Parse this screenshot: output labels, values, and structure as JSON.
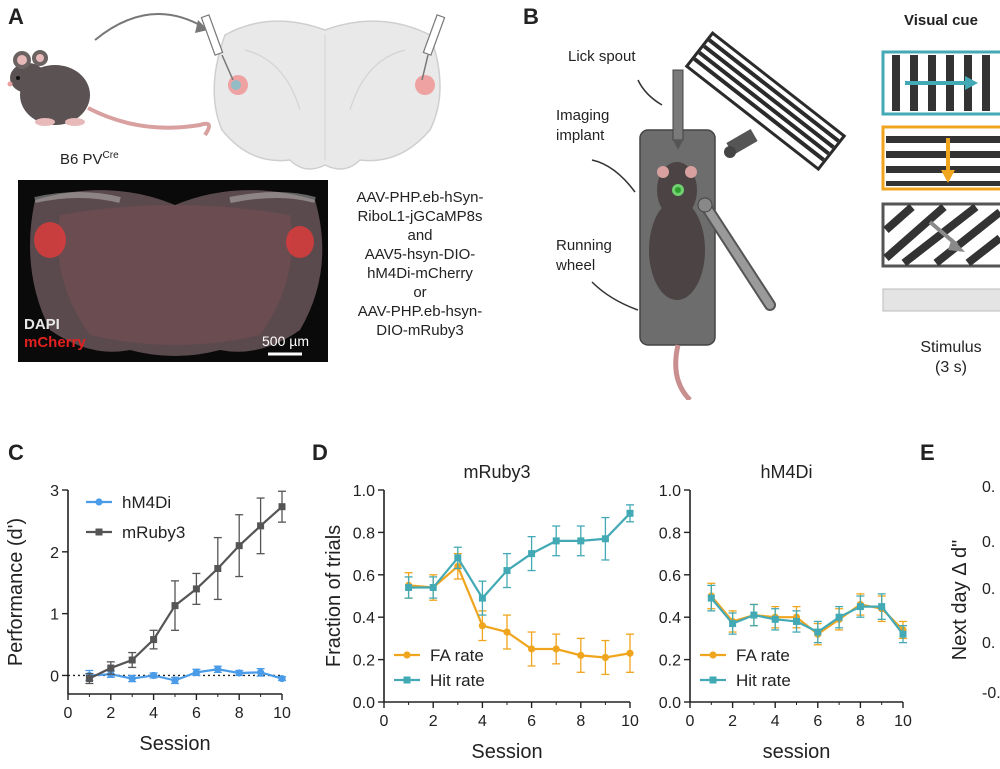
{
  "panels": {
    "A": "A",
    "B": "B",
    "C": "C",
    "D": "D",
    "E": "E"
  },
  "panelA": {
    "mouse_label": "B6 PV",
    "mouse_label_sup": "Cre",
    "histology": {
      "stain1": "DAPI",
      "stain2": "mCherry",
      "scale_bar": "500 µm"
    },
    "constructs": [
      "AAV-PHP.eb-hSyn-",
      "RiboL1-jGCaMP8s",
      "and",
      "AAV5-hsyn-DIO-",
      "hM4Di-mCherry",
      "or",
      "AAV-PHP.eb-hsyn-",
      "DIO-mRuby3"
    ]
  },
  "panelB": {
    "lick_spout": "Lick spout",
    "imaging_implant": [
      "Imaging",
      "implant"
    ],
    "running_wheel": [
      "Running",
      "wheel"
    ],
    "visual_cue_title": "Visual cue",
    "stimulus": [
      "Stimulus",
      "(3 s)"
    ],
    "colors": {
      "teal": "#43aab5",
      "orange": "#f0a51e",
      "gray": "#777777"
    }
  },
  "chart_data": [
    {
      "type": "line",
      "panel": "C",
      "xlabel": "Session",
      "ylabel": "Performance (d')",
      "xlim": [
        0,
        10
      ],
      "ylim": [
        -0.3,
        3
      ],
      "xticks": [
        "0",
        "2",
        "4",
        "6",
        "8",
        "10"
      ],
      "yticks": [
        "0",
        "1",
        "2",
        "3"
      ],
      "x": [
        1,
        2,
        3,
        4,
        5,
        6,
        7,
        8,
        9,
        10
      ],
      "reference_line": 0,
      "series": [
        {
          "name": "hM4Di",
          "color": "#4a9be8",
          "values": [
            0.0,
            0.02,
            -0.05,
            0.0,
            -0.08,
            0.05,
            0.1,
            0.04,
            0.05,
            -0.05
          ],
          "errors": [
            0.08,
            0.05,
            0.05,
            0.04,
            0.05,
            0.05,
            0.05,
            0.04,
            0.06,
            0.03
          ]
        },
        {
          "name": "mRuby3",
          "color": "#555555",
          "values": [
            -0.05,
            0.12,
            0.25,
            0.58,
            1.13,
            1.4,
            1.73,
            2.1,
            2.42,
            2.73
          ],
          "errors": [
            0.08,
            0.1,
            0.12,
            0.15,
            0.4,
            0.25,
            0.5,
            0.5,
            0.45,
            0.25
          ]
        }
      ]
    },
    {
      "type": "line",
      "panel": "D",
      "title": "mRuby3",
      "xlabel": "Session",
      "ylabel": "Fraction of trials",
      "xlim": [
        0,
        10
      ],
      "ylim": [
        0,
        1
      ],
      "xticks": [
        "0",
        "2",
        "4",
        "6",
        "8",
        "10"
      ],
      "yticks": [
        "0.0",
        "0.2",
        "0.4",
        "0.6",
        "0.8",
        "1.0"
      ],
      "x": [
        1,
        2,
        3,
        4,
        5,
        6,
        7,
        8,
        9,
        10
      ],
      "series": [
        {
          "name": "FA rate",
          "color": "#f0a51e",
          "values": [
            0.55,
            0.54,
            0.64,
            0.36,
            0.33,
            0.25,
            0.25,
            0.22,
            0.21,
            0.23
          ],
          "errors": [
            0.06,
            0.06,
            0.06,
            0.07,
            0.08,
            0.08,
            0.07,
            0.08,
            0.08,
            0.09
          ]
        },
        {
          "name": "Hit rate",
          "color": "#43aab5",
          "values": [
            0.54,
            0.54,
            0.68,
            0.49,
            0.62,
            0.7,
            0.76,
            0.76,
            0.77,
            0.89
          ],
          "errors": [
            0.05,
            0.05,
            0.05,
            0.08,
            0.08,
            0.08,
            0.07,
            0.07,
            0.1,
            0.04
          ]
        }
      ]
    },
    {
      "type": "line",
      "panel": "D",
      "title": "hM4Di",
      "xlabel": "session",
      "ylabel": "",
      "xlim": [
        0,
        10
      ],
      "ylim": [
        0,
        1
      ],
      "xticks": [
        "0",
        "2",
        "4",
        "6",
        "8",
        "10"
      ],
      "yticks": [
        "0.0",
        "0.2",
        "0.4",
        "0.6",
        "0.8",
        "1.0"
      ],
      "x": [
        1,
        2,
        3,
        4,
        5,
        6,
        7,
        8,
        9,
        10
      ],
      "series": [
        {
          "name": "FA rate",
          "color": "#f0a51e",
          "values": [
            0.5,
            0.38,
            0.41,
            0.4,
            0.4,
            0.32,
            0.39,
            0.46,
            0.44,
            0.34
          ],
          "errors": [
            0.06,
            0.05,
            0.05,
            0.05,
            0.05,
            0.05,
            0.05,
            0.05,
            0.06,
            0.04
          ]
        },
        {
          "name": "Hit rate",
          "color": "#43aab5",
          "values": [
            0.49,
            0.37,
            0.41,
            0.39,
            0.38,
            0.33,
            0.4,
            0.45,
            0.45,
            0.32
          ],
          "errors": [
            0.06,
            0.05,
            0.05,
            0.05,
            0.05,
            0.05,
            0.05,
            0.05,
            0.06,
            0.04
          ]
        }
      ]
    }
  ],
  "panelE": {
    "ylabel": "Next day Δ d\"",
    "yticks_partial": [
      "0.",
      "0.",
      "0.",
      "0.",
      "-0."
    ]
  }
}
